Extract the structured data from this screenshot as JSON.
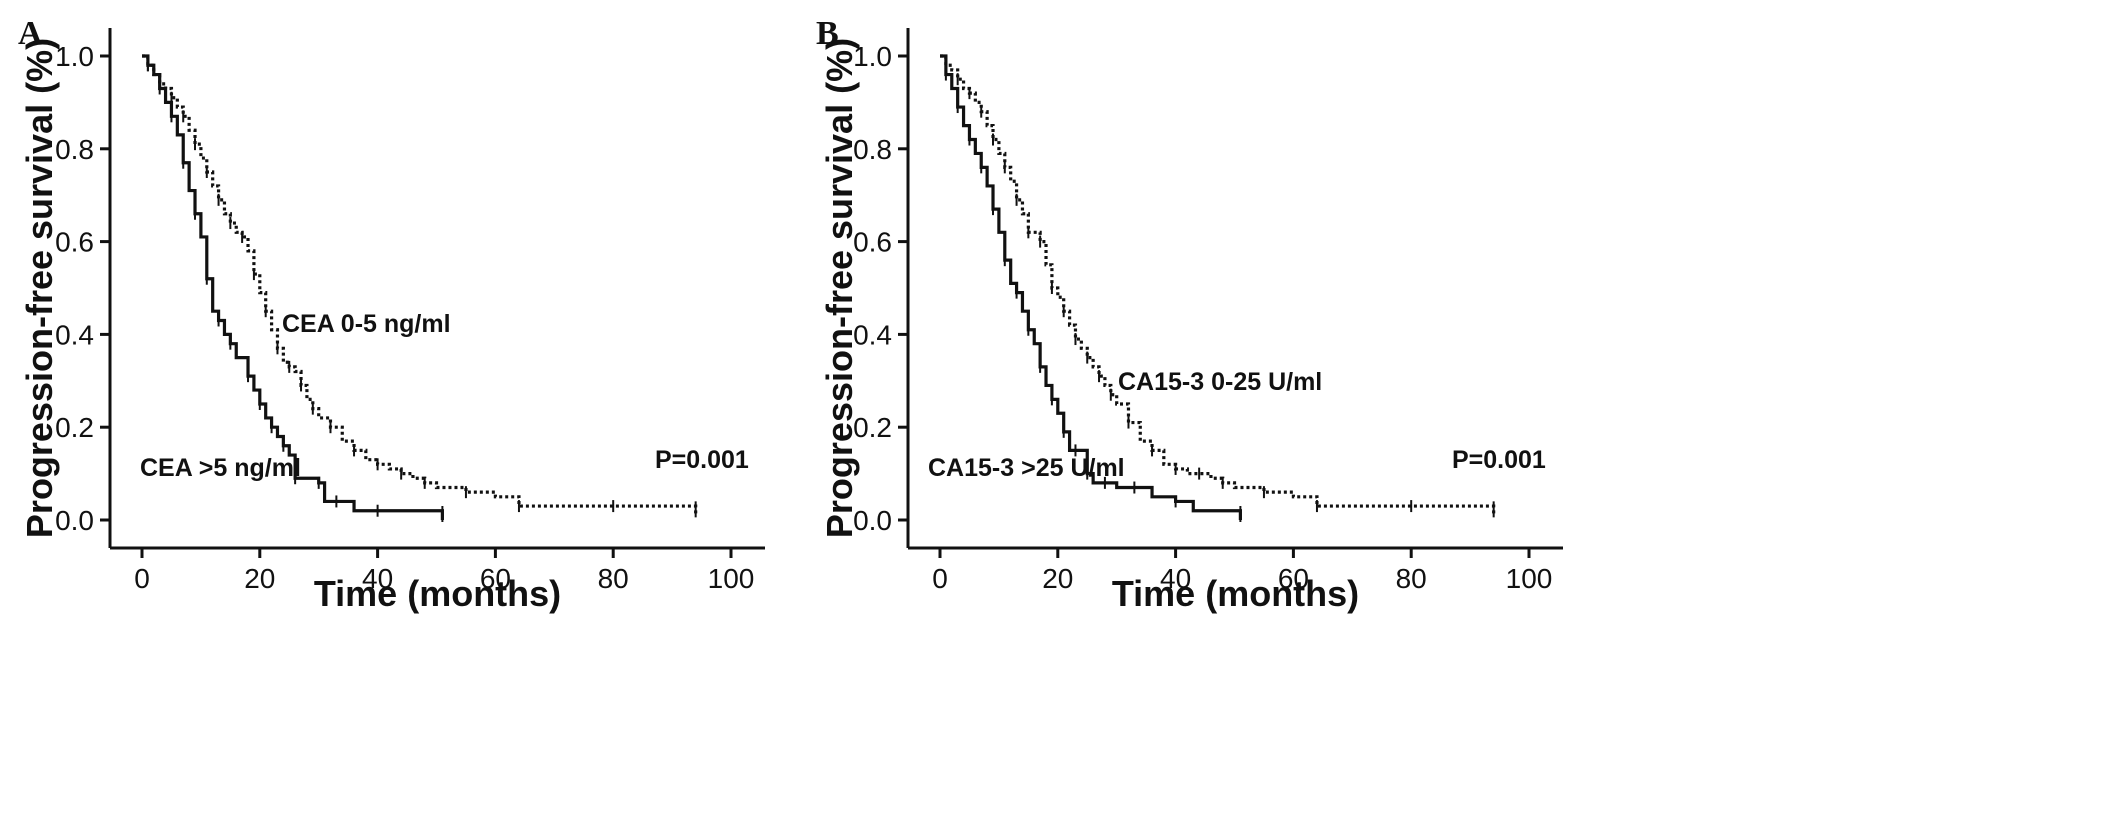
{
  "chart_data": [
    {
      "type": "line",
      "panel_label": "A",
      "xlabel": "Time (months)",
      "ylabel": "Progression-free survival (%)",
      "xlim": [
        0,
        100
      ],
      "ylim": [
        0,
        1.0
      ],
      "x_ticks": [
        "0",
        "20",
        "40",
        "60",
        "80",
        "100"
      ],
      "y_ticks": [
        "0.0",
        "0.2",
        "0.4",
        "0.6",
        "0.8",
        "1.0"
      ],
      "p_value": "P=0.001",
      "series": [
        {
          "name": "CEA 0-5 ng/ml",
          "style": "dotted",
          "x": [
            0,
            1,
            2,
            3,
            4,
            5,
            6,
            7,
            8,
            9,
            10,
            11,
            12,
            13,
            14,
            15,
            16,
            17,
            18,
            19,
            20,
            21,
            22,
            23,
            24,
            25,
            26,
            27,
            28,
            29,
            30,
            32,
            34,
            36,
            38,
            40,
            42,
            44,
            46,
            48,
            50,
            55,
            60,
            64,
            70,
            80,
            90,
            94
          ],
          "y": [
            1.0,
            0.98,
            0.96,
            0.94,
            0.93,
            0.91,
            0.89,
            0.87,
            0.84,
            0.81,
            0.78,
            0.75,
            0.72,
            0.69,
            0.66,
            0.64,
            0.62,
            0.61,
            0.58,
            0.53,
            0.49,
            0.45,
            0.41,
            0.37,
            0.34,
            0.33,
            0.32,
            0.29,
            0.26,
            0.24,
            0.22,
            0.2,
            0.17,
            0.15,
            0.13,
            0.12,
            0.11,
            0.1,
            0.09,
            0.08,
            0.07,
            0.06,
            0.05,
            0.03,
            0.03,
            0.03,
            0.03,
            0.01
          ]
        },
        {
          "name": "CEA >5 ng/ml",
          "style": "solid",
          "x": [
            0,
            1,
            2,
            3,
            4,
            5,
            6,
            7,
            8,
            9,
            10,
            11,
            12,
            13,
            14,
            15,
            16,
            18,
            19,
            20,
            21,
            22,
            23,
            24,
            25,
            26,
            28,
            30,
            31,
            33,
            36,
            40,
            45,
            51
          ],
          "y": [
            1.0,
            0.98,
            0.96,
            0.93,
            0.9,
            0.87,
            0.83,
            0.77,
            0.71,
            0.66,
            0.61,
            0.52,
            0.45,
            0.43,
            0.4,
            0.38,
            0.35,
            0.31,
            0.28,
            0.25,
            0.22,
            0.2,
            0.18,
            0.16,
            0.14,
            0.09,
            0.09,
            0.08,
            0.04,
            0.04,
            0.02,
            0.02,
            0.02,
            0.0
          ]
        }
      ]
    },
    {
      "type": "line",
      "panel_label": "B",
      "xlabel": "Time (months)",
      "ylabel": "Progression-free survival (%)",
      "xlim": [
        0,
        100
      ],
      "ylim": [
        0,
        1.0
      ],
      "x_ticks": [
        "0",
        "20",
        "40",
        "60",
        "80",
        "100"
      ],
      "y_ticks": [
        "0.0",
        "0.2",
        "0.4",
        "0.6",
        "0.8",
        "1.0"
      ],
      "p_value": "P=0.001",
      "series": [
        {
          "name": "CA15-3  0-25 U/ml",
          "style": "dotted",
          "x": [
            0,
            1,
            2,
            3,
            4,
            5,
            6,
            7,
            8,
            9,
            10,
            11,
            12,
            13,
            14,
            15,
            16,
            17,
            18,
            19,
            20,
            21,
            22,
            23,
            24,
            25,
            26,
            27,
            28,
            29,
            30,
            32,
            34,
            36,
            38,
            40,
            42,
            44,
            46,
            48,
            50,
            55,
            60,
            64,
            70,
            80,
            90,
            94
          ],
          "y": [
            1.0,
            0.98,
            0.97,
            0.95,
            0.93,
            0.92,
            0.9,
            0.88,
            0.85,
            0.82,
            0.79,
            0.76,
            0.73,
            0.69,
            0.66,
            0.62,
            0.62,
            0.6,
            0.55,
            0.5,
            0.48,
            0.45,
            0.42,
            0.39,
            0.37,
            0.35,
            0.33,
            0.31,
            0.29,
            0.27,
            0.25,
            0.21,
            0.17,
            0.15,
            0.12,
            0.11,
            0.1,
            0.1,
            0.09,
            0.08,
            0.07,
            0.06,
            0.05,
            0.03,
            0.03,
            0.03,
            0.03,
            0.01
          ]
        },
        {
          "name": "CA15-3  >25 U/ml",
          "style": "solid",
          "x": [
            0,
            1,
            2,
            3,
            4,
            5,
            6,
            7,
            8,
            9,
            10,
            11,
            12,
            13,
            14,
            15,
            16,
            17,
            18,
            19,
            20,
            21,
            22,
            23,
            24,
            25,
            26,
            28,
            30,
            33,
            36,
            40,
            43,
            51
          ],
          "y": [
            1.0,
            0.96,
            0.93,
            0.89,
            0.85,
            0.82,
            0.79,
            0.76,
            0.72,
            0.67,
            0.62,
            0.56,
            0.51,
            0.49,
            0.45,
            0.41,
            0.38,
            0.33,
            0.29,
            0.26,
            0.23,
            0.19,
            0.15,
            0.15,
            0.15,
            0.1,
            0.08,
            0.08,
            0.07,
            0.07,
            0.05,
            0.04,
            0.02,
            0.0
          ]
        }
      ]
    }
  ]
}
